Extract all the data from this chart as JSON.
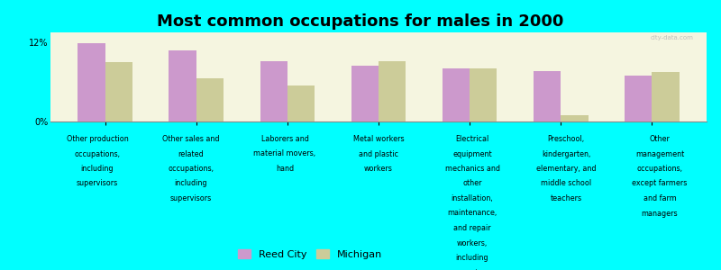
{
  "title": "Most common occupations for males in 2000",
  "background_color": "#00FFFF",
  "bar_color_city": "#CC99CC",
  "bar_color_state": "#CCCC99",
  "legend_city": "Reed City",
  "legend_state": "Michigan",
  "categories": [
    "Other production\noccupations,\nincluding\nsupervisors",
    "Other sales and\nrelated\noccupations,\nincluding\nsupervisors",
    "Laborers and\nmaterial movers,\nhand",
    "Metal workers\nand plastic\nworkers",
    "Electrical\nequipment\nmechanics and\nother\ninstallation,\nmaintenance,\nand repair\nworkers,\nincluding\nsupervisors",
    "Preschool,\nkindergarten,\nelementary, and\nmiddle school\nteachers",
    "Other\nmanagement\noccupations,\nexcept farmers\nand farm\nmanagers"
  ],
  "reed_city_values": [
    11.8,
    10.8,
    9.2,
    8.5,
    8.0,
    7.6,
    7.0
  ],
  "michigan_values": [
    9.0,
    6.5,
    5.5,
    9.2,
    8.0,
    1.0,
    7.5
  ],
  "ylim": [
    0,
    13.5
  ],
  "ytick_labels": [
    "0%",
    "12%"
  ],
  "ytick_values": [
    0,
    12
  ],
  "plot_area_color_top": "#F5F5E8",
  "plot_area_color_bottom": "#E8F5E8",
  "watermark": "city-data.com"
}
